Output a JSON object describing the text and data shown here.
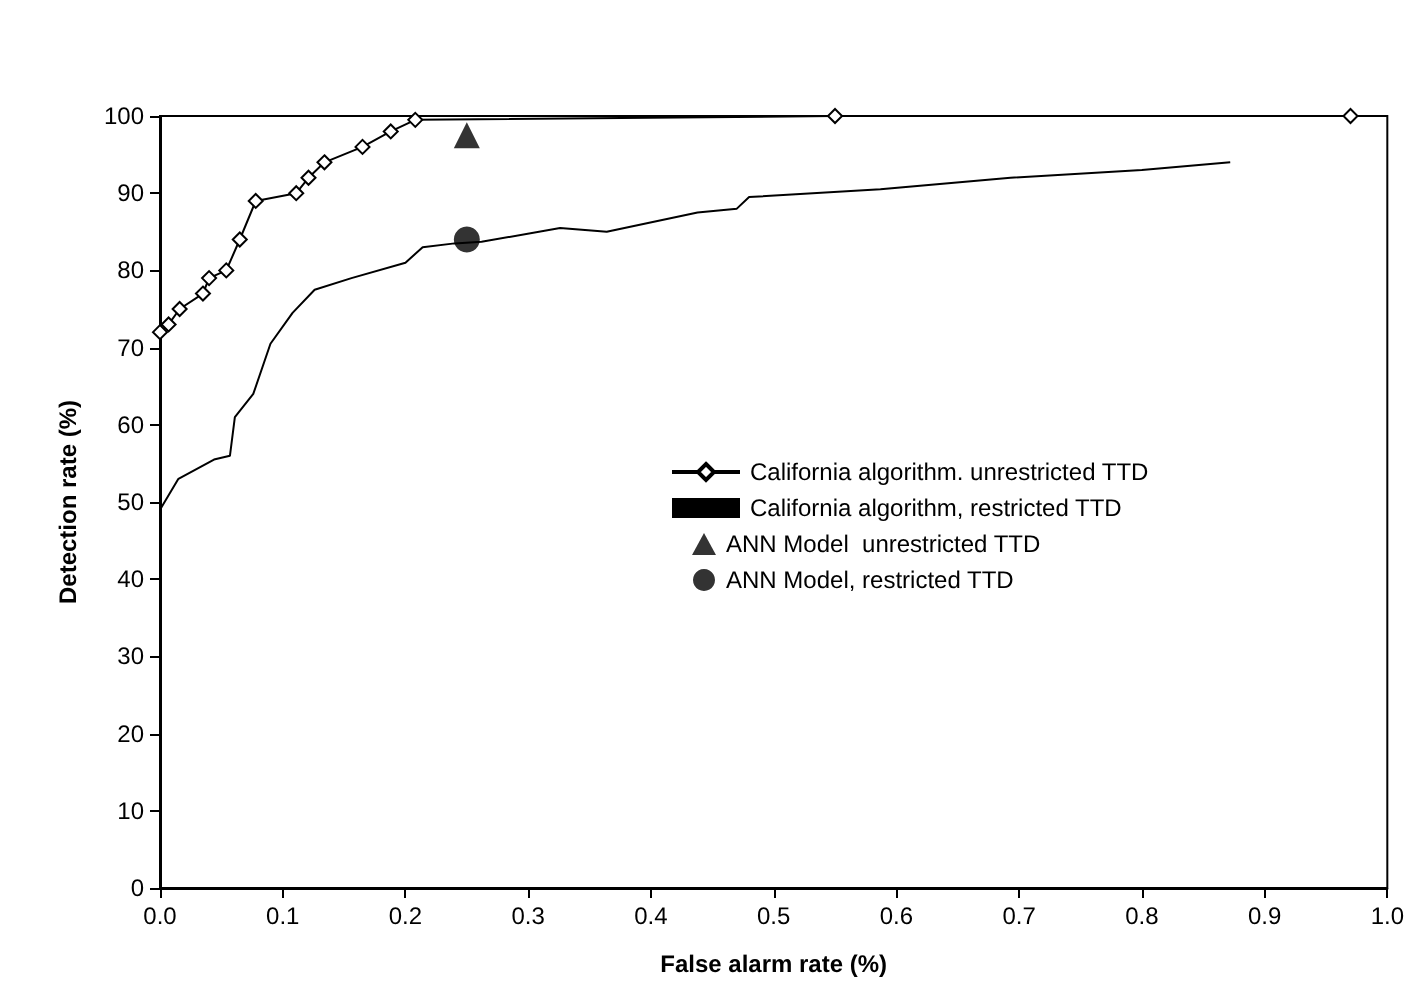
{
  "chart_data": {
    "type": "line",
    "xlabel": "False alarm rate (%)",
    "ylabel": "Detection rate (%)",
    "xlim": [
      0,
      1
    ],
    "xticks": [
      {
        "value": 0,
        "label": "0.0"
      },
      0.1,
      0.2,
      0.3,
      0.4,
      0.5,
      0.6,
      0.7,
      0.8,
      0.9,
      {
        "value": 1,
        "label": "1.0"
      }
    ],
    "ylim": [
      0,
      100
    ],
    "yticks": [
      0,
      10,
      20,
      30,
      40,
      50,
      60,
      70,
      80,
      90,
      100
    ],
    "grid": false,
    "legend": "right",
    "line_style": "solid",
    "series": [
      {
        "name": "California algorithm. unrestricted TTD",
        "marker": "diamond",
        "color": "#000000",
        "x": [
          0,
          0.007,
          0.016,
          0.035,
          0.04,
          0.054,
          0.065,
          0.078,
          0.111,
          0.121,
          0.134,
          0.165,
          0.188,
          0.208,
          0.55,
          0.97
        ],
        "values": [
          72,
          73,
          75,
          77,
          79,
          80,
          84,
          89,
          90,
          92,
          94,
          96,
          98,
          99.5,
          100,
          100
        ]
      },
      {
        "name": "California algorithm, restricted TTD",
        "marker": "none",
        "color": "#000000",
        "x": [
          0,
          0.015,
          0.044,
          0.057,
          0.061,
          0.076,
          0.09,
          0.108,
          0.126,
          0.156,
          0.2,
          0.214,
          0.24,
          0.262,
          0.326,
          0.364,
          0.438,
          0.47,
          0.48,
          0.587,
          0.693,
          0.8,
          0.872
        ],
        "values": [
          49,
          53,
          55.5,
          56,
          61,
          64,
          70.5,
          74.5,
          77.5,
          79,
          81,
          83,
          83.5,
          83.7,
          85.5,
          85,
          87.5,
          88,
          89.5,
          90.5,
          92,
          93,
          94
        ]
      },
      {
        "name": "ANN Model  unrestricted TTD",
        "type": "scatter",
        "marker": "triangle",
        "color": "#000000",
        "x": [
          0.25
        ],
        "values": [
          97.5
        ]
      },
      {
        "name": "ANN Model, restricted TTD",
        "type": "scatter",
        "marker": "circle",
        "color": "#000000",
        "x": [
          0.25
        ],
        "values": [
          84
        ]
      }
    ]
  }
}
